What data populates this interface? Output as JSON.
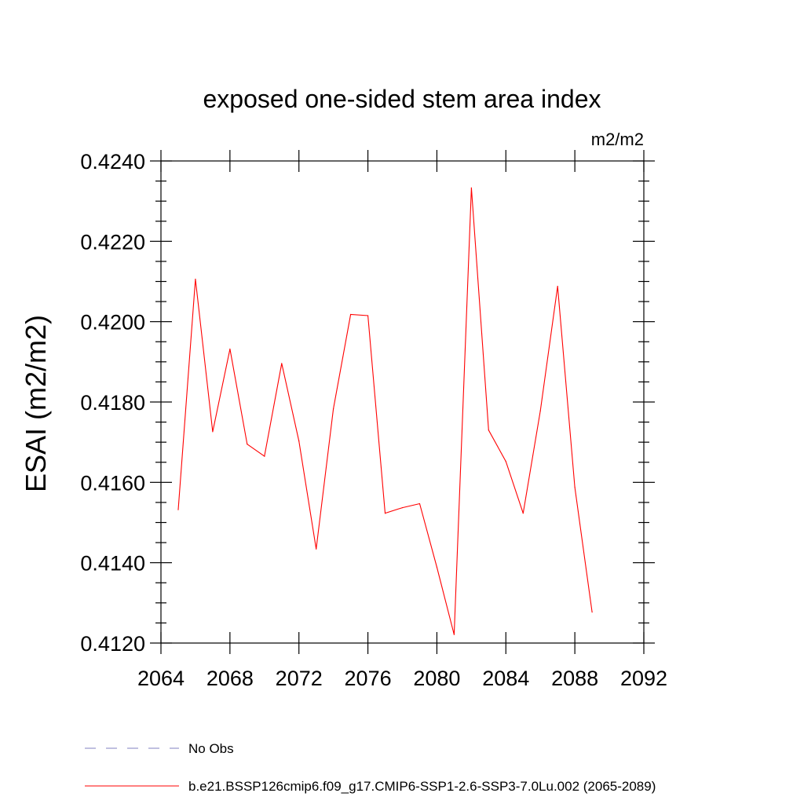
{
  "chart_data": {
    "type": "line",
    "title": "exposed one-sided stem area index",
    "units": "m2/m2",
    "ylabel": "ESAI  (m2/m2)",
    "xlabel": "",
    "xlim": [
      2064,
      2092
    ],
    "ylim": [
      0.412,
      0.424
    ],
    "xticks": [
      2064,
      2068,
      2072,
      2076,
      2080,
      2084,
      2088,
      2092
    ],
    "xtick_labels": [
      "2064",
      "2068",
      "2072",
      "2076",
      "2080",
      "2084",
      "2088",
      "2092"
    ],
    "yticks": [
      0.412,
      0.414,
      0.416,
      0.418,
      0.42,
      0.422,
      0.424
    ],
    "ytick_labels": [
      "0.4120",
      "0.4140",
      "0.4160",
      "0.4180",
      "0.4200",
      "0.4220",
      "0.4240"
    ],
    "series": [
      {
        "name": "b.e21.BSSP126cmip6.f09_g17.CMIP6-SSP1-2.6-SSP3-7.0Lu.002 (2065-2089)",
        "color": "#ff0000",
        "x": [
          2065,
          2066,
          2067,
          2068,
          2069,
          2070,
          2071,
          2072,
          2073,
          2074,
          2075,
          2076,
          2077,
          2078,
          2079,
          2080,
          2081,
          2082,
          2083,
          2084,
          2085,
          2086,
          2087,
          2088,
          2089
        ],
        "values": [
          0.41532,
          0.42106,
          0.41726,
          0.41932,
          0.41695,
          0.41665,
          0.41896,
          0.41703,
          0.41434,
          0.41783,
          0.42018,
          0.42015,
          0.41523,
          0.41537,
          0.41547,
          0.41389,
          0.41221,
          0.42333,
          0.4173,
          0.41652,
          0.41523,
          0.41778,
          0.42088,
          0.41588,
          0.41277
        ]
      }
    ],
    "legend": [
      {
        "label": "No Obs",
        "style": "dashed",
        "color": "#8080c0"
      },
      {
        "label": "b.e21.BSSP126cmip6.f09_g17.CMIP6-SSP1-2.6-SSP3-7.0Lu.002 (2065-2089)",
        "style": "solid",
        "color": "#ff0000"
      }
    ]
  }
}
